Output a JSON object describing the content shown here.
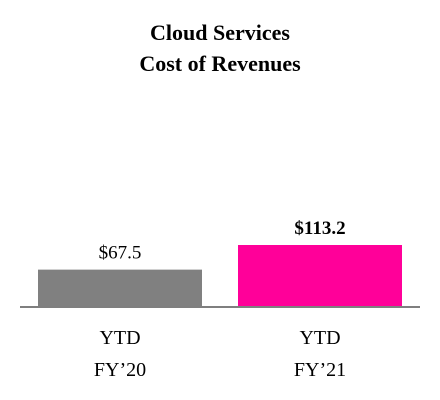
{
  "chart_data": {
    "type": "bar",
    "title_lines": [
      "Cloud Services",
      "Cost of Revenues"
    ],
    "categories": [
      {
        "lines": [
          "YTD",
          "FY’20"
        ]
      },
      {
        "lines": [
          "YTD",
          "FY’21"
        ]
      }
    ],
    "values": [
      67.5,
      113.2
    ],
    "value_labels": [
      "$67.5",
      "$113.2"
    ],
    "value_label_bold": [
      false,
      true
    ],
    "colors": [
      "#808080",
      "#ff0099"
    ],
    "axis_color": "#7f7f7f",
    "ylim": [
      0,
      113.2
    ],
    "grid": false,
    "legend": "none"
  }
}
